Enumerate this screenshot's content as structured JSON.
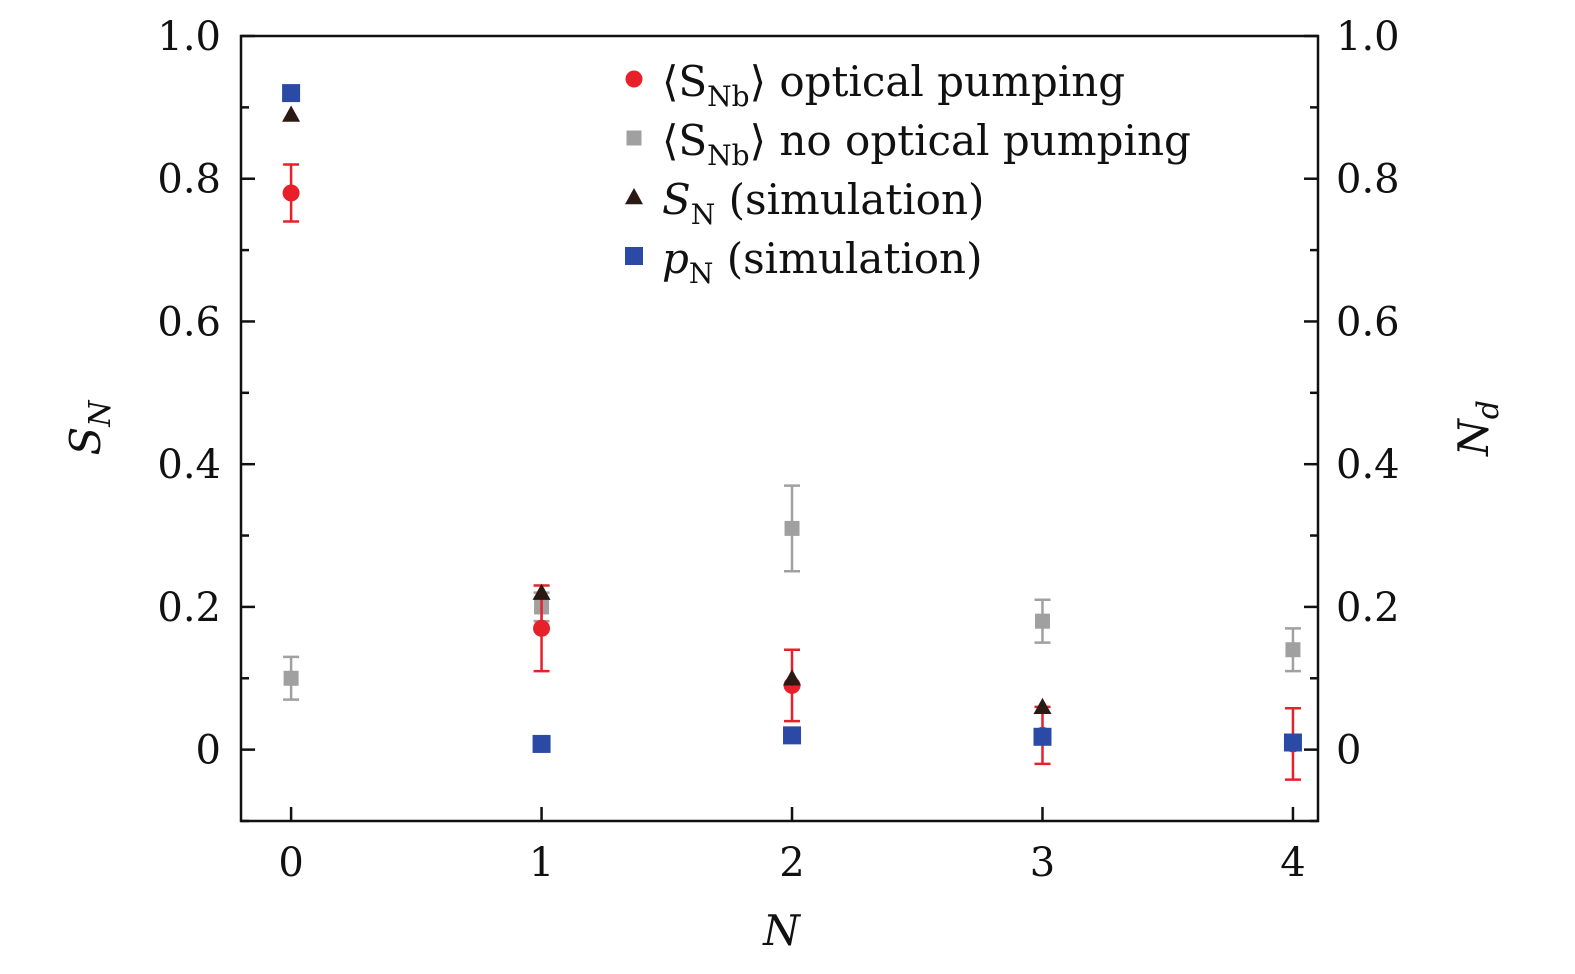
{
  "chart_data": {
    "type": "scatter",
    "xlabel": "N",
    "ylabel_left": "S_N",
    "ylabel_left_main": "S",
    "ylabel_left_sub": "N",
    "ylabel_right": "N_d",
    "ylabel_right_main": "N",
    "ylabel_right_sub": "d",
    "xlim": [
      -0.2,
      4.1
    ],
    "ylim": [
      -0.1,
      1.0
    ],
    "x_ticks": [
      0,
      1,
      2,
      3,
      4
    ],
    "x_tick_labels": [
      "0",
      "1",
      "2",
      "3",
      "4"
    ],
    "y_ticks": [
      0,
      0.2,
      0.4,
      0.6,
      0.8,
      1.0
    ],
    "y_tick_labels": [
      "0",
      "0.2",
      "0.4",
      "0.6",
      "0.8",
      "1.0"
    ],
    "y_minor_ticks": [
      -0.1,
      0.1,
      0.3,
      0.5,
      0.7,
      0.9
    ],
    "legend_position": "top-right",
    "series": [
      {
        "name": "⟨S_Nb⟩ optical pumping",
        "legend_main": "⟨S",
        "legend_sub": "Nb",
        "legend_rest": "⟩ optical pumping",
        "marker": "circle",
        "color": "#e8202a",
        "x": [
          0,
          1,
          2,
          3,
          4
        ],
        "y": [
          0.78,
          0.17,
          0.09,
          0.02,
          0.008
        ],
        "err": [
          0.04,
          0.06,
          0.05,
          0.04,
          0.05
        ]
      },
      {
        "name": "⟨S_Nb⟩ no optical pumping",
        "legend_main": "⟨S",
        "legend_sub": "Nb",
        "legend_rest": "⟩ no optical pumping",
        "marker": "square-small",
        "color": "#a0a0a0",
        "x": [
          0,
          1,
          2,
          3,
          4
        ],
        "y": [
          0.1,
          0.2,
          0.31,
          0.18,
          0.14
        ],
        "err": [
          0.03,
          0.02,
          0.06,
          0.03,
          0.03
        ]
      },
      {
        "name": "S_N (simulation)",
        "legend_main": "S",
        "legend_sub": "N",
        "legend_rest": " (simulation)",
        "marker": "triangle",
        "color": "#2b1a14",
        "x": [
          0,
          1,
          2,
          3
        ],
        "y": [
          0.89,
          0.22,
          0.1,
          0.06
        ],
        "err": []
      },
      {
        "name": "p_N (simulation)",
        "legend_main": "p",
        "legend_sub": "N",
        "legend_rest": " (simulation)",
        "marker": "square",
        "color": "#2b4aa6",
        "x": [
          0,
          1,
          2,
          3,
          4
        ],
        "y": [
          0.92,
          0.008,
          0.02,
          0.018,
          0.01
        ],
        "err": []
      }
    ]
  }
}
